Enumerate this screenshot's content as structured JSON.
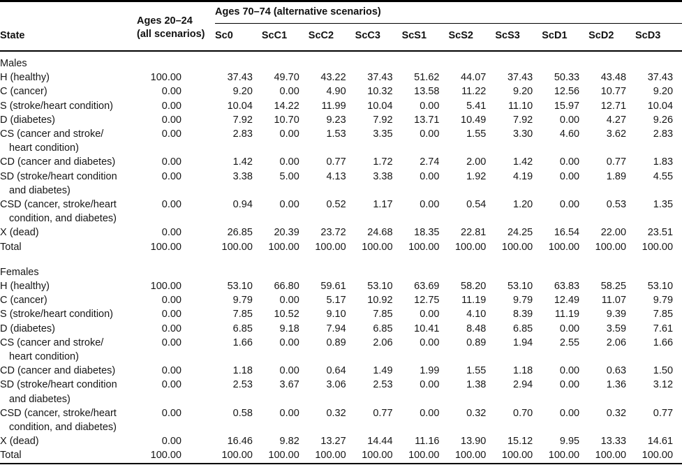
{
  "table": {
    "col1_header": "State",
    "col2_header_line1": "Ages 20–24",
    "col2_header_line2": "(all scenarios)",
    "spanner_header": "Ages 70–74 (alternative scenarios)",
    "scenario_columns": [
      "Sc0",
      "ScC1",
      "ScC2",
      "ScC3",
      "ScS1",
      "ScS2",
      "ScS3",
      "ScD1",
      "ScD2",
      "ScD3"
    ],
    "sections": [
      {
        "label": "Males",
        "rows": [
          {
            "state_lines": [
              "H (healthy)"
            ],
            "all_scenarios": "100.00",
            "values": [
              "37.43",
              "49.70",
              "43.22",
              "37.43",
              "51.62",
              "44.07",
              "37.43",
              "50.33",
              "43.48",
              "37.43"
            ]
          },
          {
            "state_lines": [
              "C (cancer)"
            ],
            "all_scenarios": "0.00",
            "values": [
              "9.20",
              "0.00",
              "4.90",
              "10.32",
              "13.58",
              "11.22",
              "9.20",
              "12.56",
              "10.77",
              "9.20"
            ]
          },
          {
            "state_lines": [
              "S (stroke/heart condition)"
            ],
            "all_scenarios": "0.00",
            "values": [
              "10.04",
              "14.22",
              "11.99",
              "10.04",
              "0.00",
              "5.41",
              "11.10",
              "15.97",
              "12.71",
              "10.04"
            ]
          },
          {
            "state_lines": [
              "D (diabetes)"
            ],
            "all_scenarios": "0.00",
            "values": [
              "7.92",
              "10.70",
              "9.23",
              "7.92",
              "13.71",
              "10.49",
              "7.92",
              "0.00",
              "4.27",
              "9.26"
            ]
          },
          {
            "state_lines": [
              "CS (cancer and stroke/",
              "heart condition)"
            ],
            "all_scenarios": "0.00",
            "values": [
              "2.83",
              "0.00",
              "1.53",
              "3.35",
              "0.00",
              "1.55",
              "3.30",
              "4.60",
              "3.62",
              "2.83"
            ]
          },
          {
            "state_lines": [
              "CD (cancer and diabetes)"
            ],
            "all_scenarios": "0.00",
            "values": [
              "1.42",
              "0.00",
              "0.77",
              "1.72",
              "2.74",
              "2.00",
              "1.42",
              "0.00",
              "0.77",
              "1.83"
            ]
          },
          {
            "state_lines": [
              "SD (stroke/heart condition",
              "and diabetes)"
            ],
            "all_scenarios": "0.00",
            "values": [
              "3.38",
              "5.00",
              "4.13",
              "3.38",
              "0.00",
              "1.92",
              "4.19",
              "0.00",
              "1.89",
              "4.55"
            ]
          },
          {
            "state_lines": [
              "CSD (cancer, stroke/heart",
              "condition, and diabetes)"
            ],
            "all_scenarios": "0.00",
            "values": [
              "0.94",
              "0.00",
              "0.52",
              "1.17",
              "0.00",
              "0.54",
              "1.20",
              "0.00",
              "0.53",
              "1.35"
            ]
          },
          {
            "state_lines": [
              "X (dead)"
            ],
            "all_scenarios": "0.00",
            "values": [
              "26.85",
              "20.39",
              "23.72",
              "24.68",
              "18.35",
              "22.81",
              "24.25",
              "16.54",
              "22.00",
              "23.51"
            ]
          },
          {
            "state_lines": [
              "Total"
            ],
            "all_scenarios": "100.00",
            "values": [
              "100.00",
              "100.00",
              "100.00",
              "100.00",
              "100.00",
              "100.00",
              "100.00",
              "100.00",
              "100.00",
              "100.00"
            ]
          }
        ]
      },
      {
        "label": "Females",
        "rows": [
          {
            "state_lines": [
              "H (healthy)"
            ],
            "all_scenarios": "100.00",
            "values": [
              "53.10",
              "66.80",
              "59.61",
              "53.10",
              "63.69",
              "58.20",
              "53.10",
              "63.83",
              "58.25",
              "53.10"
            ]
          },
          {
            "state_lines": [
              "C (cancer)"
            ],
            "all_scenarios": "0.00",
            "values": [
              "9.79",
              "0.00",
              "5.17",
              "10.92",
              "12.75",
              "11.19",
              "9.79",
              "12.49",
              "11.07",
              "9.79"
            ]
          },
          {
            "state_lines": [
              "S (stroke/heart condition)"
            ],
            "all_scenarios": "0.00",
            "values": [
              "7.85",
              "10.52",
              "9.10",
              "7.85",
              "0.00",
              "4.10",
              "8.39",
              "11.19",
              "9.39",
              "7.85"
            ]
          },
          {
            "state_lines": [
              "D (diabetes)"
            ],
            "all_scenarios": "0.00",
            "values": [
              "6.85",
              "9.18",
              "7.94",
              "6.85",
              "10.41",
              "8.48",
              "6.85",
              "0.00",
              "3.59",
              "7.61"
            ]
          },
          {
            "state_lines": [
              "CS (cancer and stroke/",
              "heart condition)"
            ],
            "all_scenarios": "0.00",
            "values": [
              "1.66",
              "0.00",
              "0.89",
              "2.06",
              "0.00",
              "0.89",
              "1.94",
              "2.55",
              "2.06",
              "1.66"
            ]
          },
          {
            "state_lines": [
              "CD (cancer and diabetes)"
            ],
            "all_scenarios": "0.00",
            "values": [
              "1.18",
              "0.00",
              "0.64",
              "1.49",
              "1.99",
              "1.55",
              "1.18",
              "0.00",
              "0.63",
              "1.50"
            ]
          },
          {
            "state_lines": [
              "SD (stroke/heart condition",
              "and diabetes)"
            ],
            "all_scenarios": "0.00",
            "values": [
              "2.53",
              "3.67",
              "3.06",
              "2.53",
              "0.00",
              "1.38",
              "2.94",
              "0.00",
              "1.36",
              "3.12"
            ]
          },
          {
            "state_lines": [
              "CSD (cancer, stroke/heart",
              "condition, and diabetes)"
            ],
            "all_scenarios": "0.00",
            "values": [
              "0.58",
              "0.00",
              "0.32",
              "0.77",
              "0.00",
              "0.32",
              "0.70",
              "0.00",
              "0.32",
              "0.77"
            ]
          },
          {
            "state_lines": [
              "X (dead)"
            ],
            "all_scenarios": "0.00",
            "values": [
              "16.46",
              "9.82",
              "13.27",
              "14.44",
              "11.16",
              "13.90",
              "15.12",
              "9.95",
              "13.33",
              "14.61"
            ]
          },
          {
            "state_lines": [
              "Total"
            ],
            "all_scenarios": "100.00",
            "values": [
              "100.00",
              "100.00",
              "100.00",
              "100.00",
              "100.00",
              "100.00",
              "100.00",
              "100.00",
              "100.00",
              "100.00"
            ]
          }
        ]
      }
    ]
  }
}
